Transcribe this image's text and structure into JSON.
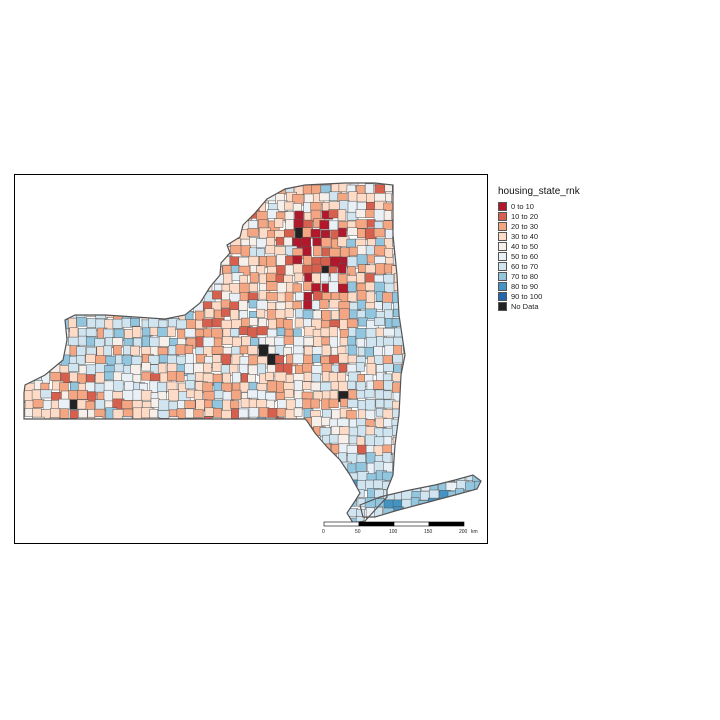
{
  "legend": {
    "title": "housing_state_rnk",
    "items": [
      {
        "label": "0 to 10",
        "color": "#b2182b"
      },
      {
        "label": "10 to 20",
        "color": "#d6604d"
      },
      {
        "label": "20 to 30",
        "color": "#f4a582"
      },
      {
        "label": "30 to 40",
        "color": "#fddbc7"
      },
      {
        "label": "40 to 50",
        "color": "#f7f0ea"
      },
      {
        "label": "50 to 60",
        "color": "#eaf1f6"
      },
      {
        "label": "60 to 70",
        "color": "#d1e5f0"
      },
      {
        "label": "70 to 80",
        "color": "#92c5de"
      },
      {
        "label": "80 to 90",
        "color": "#4393c3"
      },
      {
        "label": "90 to 100",
        "color": "#2166ac"
      },
      {
        "label": "No Data",
        "color": "#222222"
      }
    ]
  },
  "scalebar": {
    "ticks": [
      "0",
      "50",
      "100",
      "150",
      "200"
    ],
    "unit": "km"
  },
  "colors": {
    "border": "#555555",
    "frame": "#000000"
  }
}
